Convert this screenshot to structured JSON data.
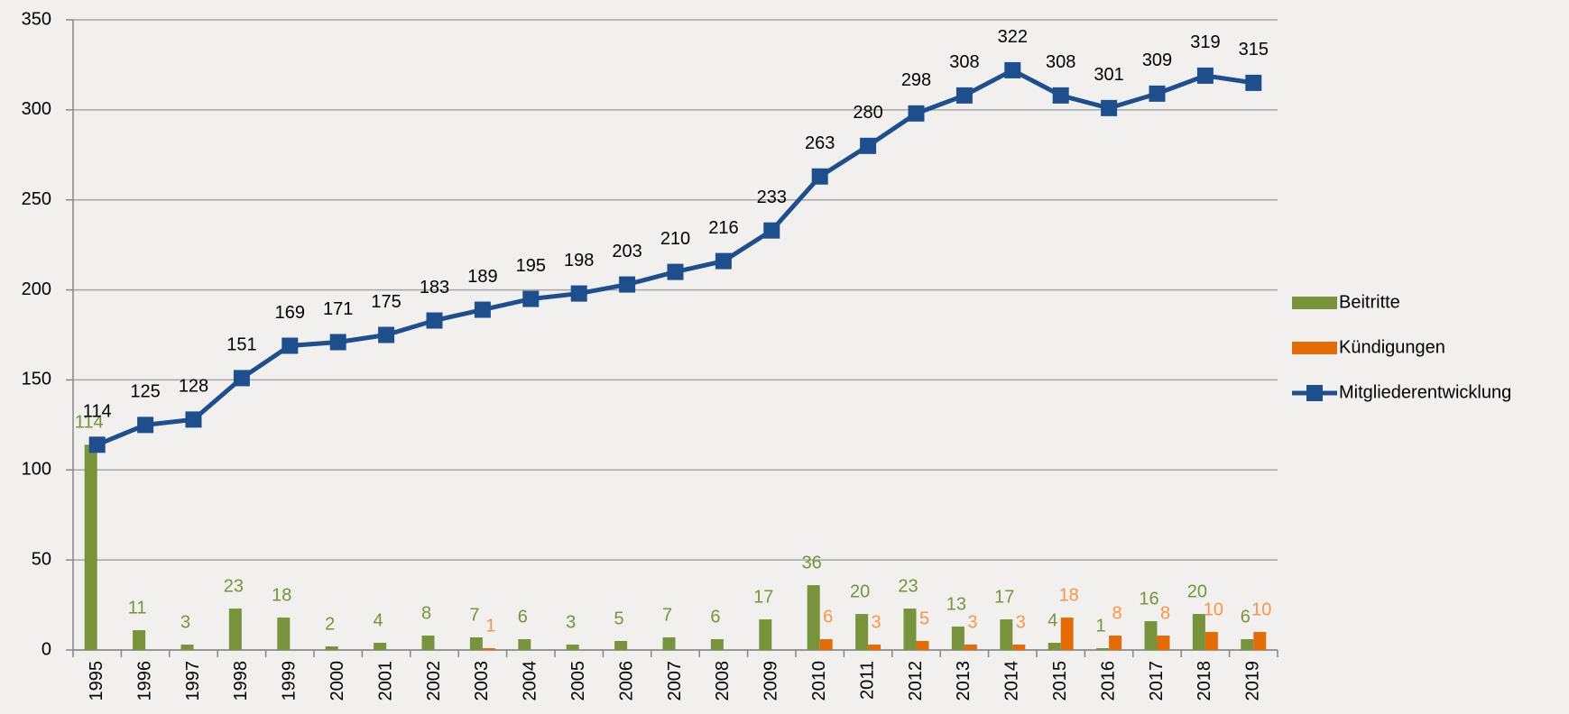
{
  "chart_data": {
    "type": "bar-line",
    "categories": [
      "1995",
      "1996",
      "1997",
      "1998",
      "1999",
      "2000",
      "2001",
      "2002",
      "2003",
      "2004",
      "2005",
      "2006",
      "2007",
      "2008",
      "2009",
      "2010",
      "2011",
      "2012",
      "2013",
      "2014",
      "2015",
      "2016",
      "2017",
      "2018",
      "2019"
    ],
    "series": [
      {
        "name": "Beitritte",
        "type": "bar",
        "color": "#77933c",
        "label_color": "#77933c",
        "values": [
          114,
          11,
          3,
          23,
          18,
          2,
          4,
          8,
          7,
          6,
          3,
          5,
          7,
          6,
          17,
          36,
          20,
          23,
          13,
          17,
          4,
          1,
          16,
          20,
          6
        ]
      },
      {
        "name": "Kündigungen",
        "type": "bar",
        "color": "#e36c09",
        "label_color": "#f79646",
        "values": [
          null,
          null,
          null,
          null,
          null,
          null,
          null,
          null,
          1,
          null,
          null,
          null,
          null,
          null,
          null,
          6,
          3,
          5,
          3,
          3,
          18,
          8,
          8,
          10,
          10
        ]
      },
      {
        "name": "Mitgliederentwicklung",
        "type": "line",
        "color": "#1f4e8c",
        "label_color": "#000000",
        "values": [
          114,
          125,
          128,
          151,
          169,
          171,
          175,
          183,
          189,
          195,
          198,
          203,
          210,
          216,
          233,
          263,
          280,
          298,
          308,
          322,
          308,
          301,
          309,
          319,
          315
        ]
      }
    ],
    "ylim": [
      0,
      350
    ],
    "yticks": [
      0,
      50,
      100,
      150,
      200,
      250,
      300,
      350
    ],
    "grid": true,
    "legend": "right"
  }
}
